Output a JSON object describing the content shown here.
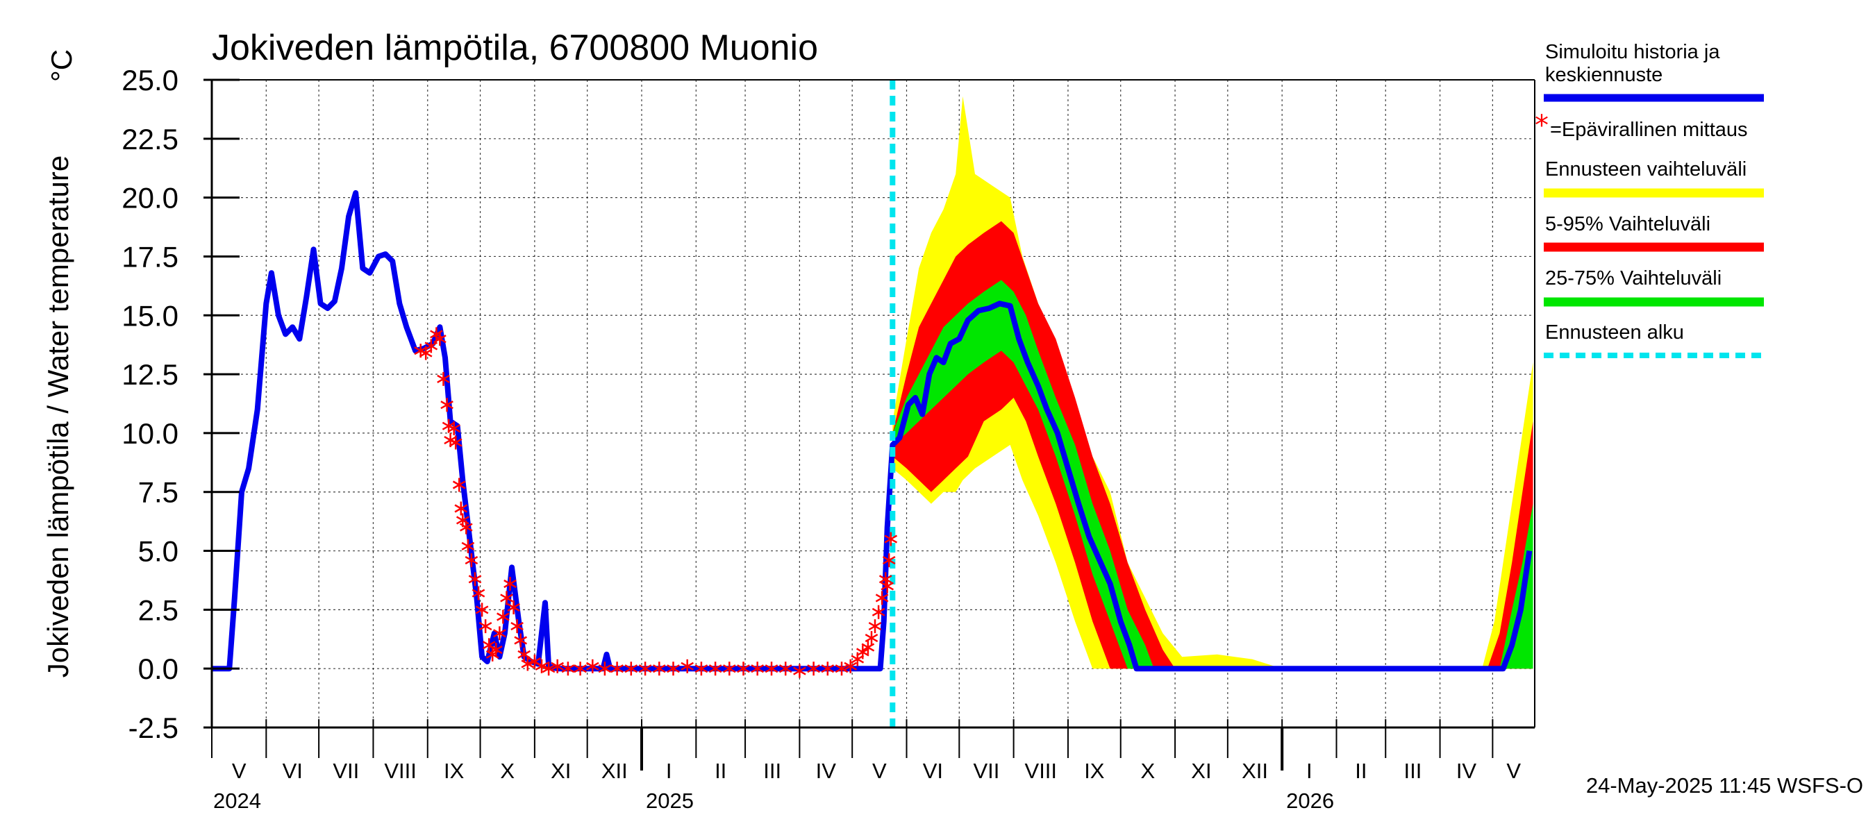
{
  "chart_data": {
    "type": "line",
    "title": "Jokiveden lämpötila, 6700800 Muonio",
    "unit_label": "°C",
    "ylabel": "Jokiveden lämpötila / Water temperature",
    "ylim": [
      -2.5,
      25.0
    ],
    "yticks": [
      "-2.5",
      "0.0",
      "2.5",
      "5.0",
      "7.5",
      "10.0",
      "12.5",
      "15.0",
      "17.5",
      "20.0",
      "22.5",
      "25.0"
    ],
    "grid": true,
    "months": [
      "V",
      "VI",
      "VII",
      "VIII",
      "IX",
      "X",
      "XI",
      "XII",
      "I",
      "II",
      "III",
      "IV",
      "V",
      "VI",
      "VII",
      "VIII",
      "IX",
      "X",
      "XI",
      "XII",
      "I",
      "II",
      "III",
      "IV",
      "V"
    ],
    "years": [
      "2024",
      "2025",
      "2026"
    ],
    "xlim": [
      "2024-05-01",
      "2026-05-25"
    ],
    "forecast_start": "2025-05-24",
    "series": [
      {
        "name": "Simuloitu historia ja keskiennuste",
        "color": "#0000ee",
        "points": [
          [
            "2024-05-01",
            0.0
          ],
          [
            "2024-05-11",
            0.0
          ],
          [
            "2024-05-14",
            3.0
          ],
          [
            "2024-05-18",
            7.5
          ],
          [
            "2024-05-22",
            8.5
          ],
          [
            "2024-05-27",
            11.0
          ],
          [
            "2024-06-01",
            15.5
          ],
          [
            "2024-06-04",
            16.8
          ],
          [
            "2024-06-08",
            15.0
          ],
          [
            "2024-06-12",
            14.2
          ],
          [
            "2024-06-16",
            14.5
          ],
          [
            "2024-06-20",
            14.0
          ],
          [
            "2024-06-24",
            15.8
          ],
          [
            "2024-06-28",
            17.8
          ],
          [
            "2024-07-02",
            15.5
          ],
          [
            "2024-07-06",
            15.3
          ],
          [
            "2024-07-10",
            15.6
          ],
          [
            "2024-07-14",
            17.0
          ],
          [
            "2024-07-18",
            19.2
          ],
          [
            "2024-07-22",
            20.2
          ],
          [
            "2024-07-26",
            17.0
          ],
          [
            "2024-07-30",
            16.8
          ],
          [
            "2024-08-04",
            17.5
          ],
          [
            "2024-08-08",
            17.6
          ],
          [
            "2024-08-12",
            17.3
          ],
          [
            "2024-08-16",
            15.5
          ],
          [
            "2024-08-20",
            14.5
          ],
          [
            "2024-08-25",
            13.5
          ],
          [
            "2024-08-30",
            13.6
          ],
          [
            "2024-09-04",
            13.8
          ],
          [
            "2024-09-08",
            14.5
          ],
          [
            "2024-09-11",
            13.2
          ],
          [
            "2024-09-14",
            10.5
          ],
          [
            "2024-09-18",
            10.3
          ],
          [
            "2024-09-21",
            8.0
          ],
          [
            "2024-09-25",
            5.5
          ],
          [
            "2024-09-29",
            3.0
          ],
          [
            "2024-10-02",
            0.5
          ],
          [
            "2024-10-05",
            0.3
          ],
          [
            "2024-10-09",
            1.5
          ],
          [
            "2024-10-12",
            0.5
          ],
          [
            "2024-10-15",
            1.5
          ],
          [
            "2024-10-19",
            4.3
          ],
          [
            "2024-10-23",
            2.0
          ],
          [
            "2024-10-26",
            0.5
          ],
          [
            "2024-10-30",
            0.3
          ],
          [
            "2024-11-03",
            0.2
          ],
          [
            "2024-11-07",
            2.8
          ],
          [
            "2024-11-09",
            0.1
          ],
          [
            "2024-11-14",
            0.0
          ],
          [
            "2024-12-10",
            0.0
          ],
          [
            "2024-12-12",
            0.6
          ],
          [
            "2024-12-14",
            0.0
          ],
          [
            "2025-05-13",
            0.0
          ],
          [
            "2025-05-17",
            0.0
          ],
          [
            "2025-05-19",
            2.0
          ],
          [
            "2025-05-21",
            6.0
          ],
          [
            "2025-05-24",
            9.5
          ],
          [
            "2025-05-28",
            9.8
          ],
          [
            "2025-06-02",
            11.2
          ],
          [
            "2025-06-06",
            11.5
          ],
          [
            "2025-06-10",
            10.8
          ],
          [
            "2025-06-14",
            12.5
          ],
          [
            "2025-06-18",
            13.2
          ],
          [
            "2025-06-22",
            13.0
          ],
          [
            "2025-06-26",
            13.8
          ],
          [
            "2025-07-01",
            14.0
          ],
          [
            "2025-07-06",
            14.8
          ],
          [
            "2025-07-12",
            15.2
          ],
          [
            "2025-07-18",
            15.3
          ],
          [
            "2025-07-24",
            15.5
          ],
          [
            "2025-07-30",
            15.4
          ],
          [
            "2025-08-04",
            14.0
          ],
          [
            "2025-08-09",
            13.0
          ],
          [
            "2025-08-15",
            12.0
          ],
          [
            "2025-08-20",
            11.0
          ],
          [
            "2025-08-26",
            10.0
          ],
          [
            "2025-09-01",
            8.5
          ],
          [
            "2025-09-07",
            7.0
          ],
          [
            "2025-09-13",
            5.6
          ],
          [
            "2025-09-19",
            4.6
          ],
          [
            "2025-09-25",
            3.6
          ],
          [
            "2025-10-01",
            2.0
          ],
          [
            "2025-10-06",
            1.0
          ],
          [
            "2025-10-10",
            0.0
          ],
          [
            "2026-04-30",
            0.0
          ],
          [
            "2026-05-07",
            0.0
          ],
          [
            "2026-05-12",
            1.0
          ],
          [
            "2026-05-17",
            2.5
          ],
          [
            "2026-05-22",
            5.0
          ]
        ]
      },
      {
        "name": "=Epävirallinen mittaus",
        "color": "#ff0000",
        "marker": "*",
        "points": [
          [
            "2024-08-28",
            13.5
          ],
          [
            "2024-08-31",
            13.4
          ],
          [
            "2024-09-03",
            13.7
          ],
          [
            "2024-09-06",
            14.2
          ],
          [
            "2024-09-08",
            14.0
          ],
          [
            "2024-09-10",
            12.3
          ],
          [
            "2024-09-12",
            11.2
          ],
          [
            "2024-09-13",
            10.3
          ],
          [
            "2024-09-14",
            9.7
          ],
          [
            "2024-09-16",
            10.2
          ],
          [
            "2024-09-17",
            9.6
          ],
          [
            "2024-09-19",
            7.8
          ],
          [
            "2024-09-20",
            6.8
          ],
          [
            "2024-09-21",
            6.3
          ],
          [
            "2024-09-23",
            6.0
          ],
          [
            "2024-09-24",
            5.2
          ],
          [
            "2024-09-26",
            4.6
          ],
          [
            "2024-09-28",
            3.8
          ],
          [
            "2024-09-30",
            3.2
          ],
          [
            "2024-10-02",
            2.5
          ],
          [
            "2024-10-04",
            1.8
          ],
          [
            "2024-10-06",
            1.0
          ],
          [
            "2024-10-08",
            0.6
          ],
          [
            "2024-10-10",
            0.8
          ],
          [
            "2024-10-12",
            1.5
          ],
          [
            "2024-10-14",
            2.2
          ],
          [
            "2024-10-16",
            3.0
          ],
          [
            "2024-10-18",
            3.6
          ],
          [
            "2024-10-20",
            2.6
          ],
          [
            "2024-10-22",
            1.8
          ],
          [
            "2024-10-24",
            1.2
          ],
          [
            "2024-10-26",
            0.6
          ],
          [
            "2024-10-28",
            0.2
          ],
          [
            "2024-11-01",
            0.3
          ],
          [
            "2024-11-05",
            0.1
          ],
          [
            "2024-11-09",
            0.0
          ],
          [
            "2024-11-14",
            0.1
          ],
          [
            "2024-11-20",
            0.0
          ],
          [
            "2024-11-27",
            0.0
          ],
          [
            "2024-12-04",
            0.1
          ],
          [
            "2024-12-11",
            0.0
          ],
          [
            "2024-12-18",
            0.0
          ],
          [
            "2024-12-26",
            0.0
          ],
          [
            "2025-01-03",
            0.0
          ],
          [
            "2025-01-11",
            0.0
          ],
          [
            "2025-01-19",
            0.0
          ],
          [
            "2025-01-27",
            0.1
          ],
          [
            "2025-02-04",
            0.0
          ],
          [
            "2025-02-12",
            0.0
          ],
          [
            "2025-02-20",
            0.0
          ],
          [
            "2025-02-28",
            0.0
          ],
          [
            "2025-03-08",
            0.0
          ],
          [
            "2025-03-16",
            0.0
          ],
          [
            "2025-03-24",
            0.0
          ],
          [
            "2025-04-01",
            -0.1
          ],
          [
            "2025-04-09",
            0.0
          ],
          [
            "2025-04-17",
            0.0
          ],
          [
            "2025-04-25",
            0.0
          ],
          [
            "2025-04-30",
            0.1
          ],
          [
            "2025-05-04",
            0.4
          ],
          [
            "2025-05-07",
            0.7
          ],
          [
            "2025-05-10",
            0.9
          ],
          [
            "2025-05-12",
            1.3
          ],
          [
            "2025-05-14",
            1.8
          ],
          [
            "2025-05-16",
            2.4
          ],
          [
            "2025-05-18",
            3.0
          ],
          [
            "2025-05-20",
            3.8
          ],
          [
            "2025-05-21",
            3.5
          ],
          [
            "2025-05-22",
            4.6
          ],
          [
            "2025-05-23",
            5.5
          ]
        ]
      },
      {
        "name": "Ennusteen vaihteluväli",
        "color": "#ffff00",
        "band": [
          [
            "2025-05-24",
            8.5,
            10.5
          ],
          [
            "2025-06-01",
            8.0,
            14.0
          ],
          [
            "2025-06-08",
            7.5,
            17.0
          ],
          [
            "2025-06-15",
            7.0,
            18.5
          ],
          [
            "2025-06-22",
            7.5,
            19.5
          ],
          [
            "2025-06-29",
            7.5,
            21.0
          ],
          [
            "2025-07-03",
            8.0,
            24.3
          ],
          [
            "2025-07-10",
            8.5,
            21.0
          ],
          [
            "2025-07-20",
            9.0,
            20.5
          ],
          [
            "2025-07-30",
            9.5,
            20.0
          ],
          [
            "2025-08-06",
            8.0,
            17.5
          ],
          [
            "2025-08-15",
            6.5,
            15.5
          ],
          [
            "2025-08-25",
            4.5,
            13.5
          ],
          [
            "2025-09-05",
            2.0,
            10.5
          ],
          [
            "2025-09-15",
            0.0,
            9.0
          ],
          [
            "2025-09-25",
            0.0,
            7.5
          ],
          [
            "2025-10-05",
            0.0,
            4.5
          ],
          [
            "2025-10-15",
            0.0,
            3.0
          ],
          [
            "2025-10-25",
            0.0,
            1.5
          ],
          [
            "2025-11-05",
            0.0,
            0.5
          ],
          [
            "2025-11-25",
            0.0,
            0.6
          ],
          [
            "2025-12-15",
            0.0,
            0.4
          ],
          [
            "2026-01-01",
            0.0,
            0.0
          ],
          [
            "2026-04-25",
            0.0,
            0.0
          ],
          [
            "2026-05-02",
            0.0,
            2.0
          ],
          [
            "2026-05-10",
            0.0,
            6.0
          ],
          [
            "2026-05-18",
            0.0,
            10.0
          ],
          [
            "2026-05-24",
            0.0,
            13.0
          ]
        ]
      },
      {
        "name": "5-95% Vaihteluväli",
        "color": "#ff0000",
        "band": [
          [
            "2025-05-24",
            9.0,
            10.0
          ],
          [
            "2025-06-01",
            8.5,
            12.5
          ],
          [
            "2025-06-08",
            8.0,
            14.5
          ],
          [
            "2025-06-15",
            7.5,
            15.5
          ],
          [
            "2025-06-22",
            8.0,
            16.5
          ],
          [
            "2025-06-29",
            8.5,
            17.5
          ],
          [
            "2025-07-06",
            9.0,
            18.0
          ],
          [
            "2025-07-15",
            10.5,
            18.5
          ],
          [
            "2025-07-25",
            11.0,
            19.0
          ],
          [
            "2025-08-01",
            11.5,
            18.5
          ],
          [
            "2025-08-08",
            10.5,
            17.0
          ],
          [
            "2025-08-15",
            9.0,
            15.5
          ],
          [
            "2025-08-25",
            7.0,
            14.0
          ],
          [
            "2025-09-05",
            4.5,
            11.5
          ],
          [
            "2025-09-15",
            2.0,
            9.0
          ],
          [
            "2025-09-25",
            0.0,
            7.0
          ],
          [
            "2025-10-05",
            0.0,
            4.5
          ],
          [
            "2025-10-15",
            0.0,
            2.5
          ],
          [
            "2025-10-25",
            0.0,
            0.8
          ],
          [
            "2025-11-01",
            0.0,
            0.0
          ],
          [
            "2026-04-28",
            0.0,
            0.0
          ],
          [
            "2026-05-05",
            0.0,
            1.5
          ],
          [
            "2026-05-12",
            0.0,
            4.5
          ],
          [
            "2026-05-18",
            0.0,
            7.5
          ],
          [
            "2026-05-24",
            0.0,
            10.5
          ]
        ]
      },
      {
        "name": "25-75% Vaihteluväli",
        "color": "#00e600",
        "band": [
          [
            "2025-05-24",
            9.5,
            10.0
          ],
          [
            "2025-06-01",
            10.0,
            11.5
          ],
          [
            "2025-06-08",
            10.5,
            12.5
          ],
          [
            "2025-06-15",
            11.0,
            13.5
          ],
          [
            "2025-06-22",
            11.5,
            14.5
          ],
          [
            "2025-06-29",
            12.0,
            15.0
          ],
          [
            "2025-07-06",
            12.5,
            15.5
          ],
          [
            "2025-07-15",
            13.0,
            16.0
          ],
          [
            "2025-07-25",
            13.5,
            16.5
          ],
          [
            "2025-08-01",
            13.0,
            16.0
          ],
          [
            "2025-08-08",
            12.0,
            15.0
          ],
          [
            "2025-08-15",
            11.0,
            13.5
          ],
          [
            "2025-08-25",
            9.0,
            11.5
          ],
          [
            "2025-09-05",
            6.5,
            9.5
          ],
          [
            "2025-09-15",
            4.0,
            7.0
          ],
          [
            "2025-09-25",
            2.0,
            5.0
          ],
          [
            "2025-10-05",
            0.0,
            2.5
          ],
          [
            "2025-10-15",
            0.0,
            1.0
          ],
          [
            "2025-10-20",
            0.0,
            0.0
          ],
          [
            "2026-05-05",
            0.0,
            0.0
          ],
          [
            "2026-05-12",
            0.0,
            2.5
          ],
          [
            "2026-05-18",
            0.0,
            4.5
          ],
          [
            "2026-05-24",
            0.0,
            7.0
          ]
        ]
      },
      {
        "name": "Ennusteen alku",
        "color": "#00e5ee",
        "style": "dashed"
      }
    ]
  },
  "footer": {
    "timestamp": "24-May-2025 11:45 WSFS-O"
  }
}
